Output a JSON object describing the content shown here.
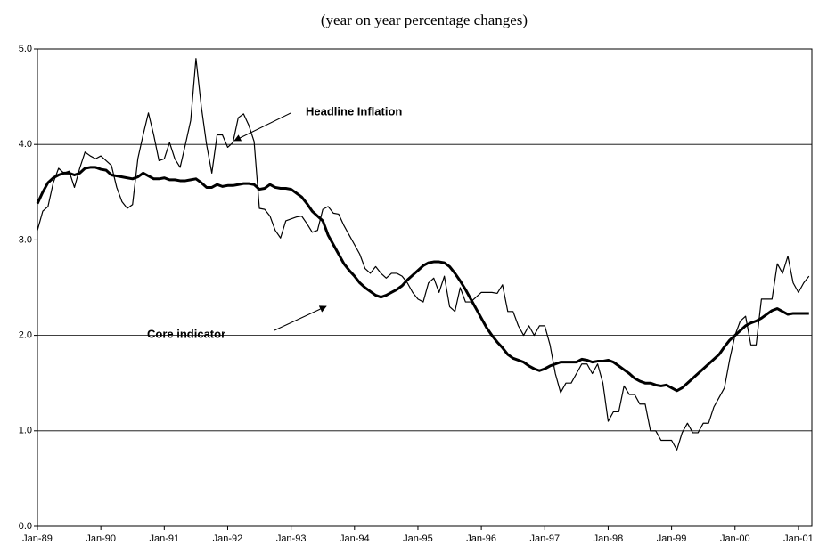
{
  "chart_data": {
    "type": "line",
    "title": "(year on year percentage changes)",
    "categories": [
      "Jan-89",
      null,
      null,
      null,
      null,
      null,
      null,
      null,
      null,
      null,
      null,
      null,
      "Jan-90",
      null,
      null,
      null,
      null,
      null,
      null,
      null,
      null,
      null,
      null,
      null,
      "Jan-91",
      null,
      null,
      null,
      null,
      null,
      null,
      null,
      null,
      null,
      null,
      null,
      "Jan-92",
      null,
      null,
      null,
      null,
      null,
      null,
      null,
      null,
      null,
      null,
      null,
      "Jan-93",
      null,
      null,
      null,
      null,
      null,
      null,
      null,
      null,
      null,
      null,
      null,
      "Jan-94",
      null,
      null,
      null,
      null,
      null,
      null,
      null,
      null,
      null,
      null,
      null,
      "Jan-95",
      null,
      null,
      null,
      null,
      null,
      null,
      null,
      null,
      null,
      null,
      null,
      "Jan-96",
      null,
      null,
      null,
      null,
      null,
      null,
      null,
      null,
      null,
      null,
      null,
      "Jan-97",
      null,
      null,
      null,
      null,
      null,
      null,
      null,
      null,
      null,
      null,
      null,
      "Jan-98",
      null,
      null,
      null,
      null,
      null,
      null,
      null,
      null,
      null,
      null,
      null,
      "Jan-99",
      null,
      null,
      null,
      null,
      null,
      null,
      null,
      null,
      null,
      null,
      null,
      "Jan-00",
      null,
      null,
      null,
      null,
      null,
      null,
      null,
      null,
      null,
      null,
      null,
      "Jan-01",
      null,
      null
    ],
    "series": [
      {
        "name": "Headline Inflation",
        "color": "#000000",
        "width": 1.2,
        "values": [
          3.1,
          3.3,
          3.35,
          3.6,
          3.75,
          3.7,
          3.72,
          3.55,
          3.75,
          3.92,
          3.88,
          3.85,
          3.88,
          3.83,
          3.78,
          3.55,
          3.4,
          3.33,
          3.37,
          3.85,
          4.1,
          4.33,
          4.1,
          3.83,
          3.85,
          4.02,
          3.85,
          3.76,
          4.0,
          4.25,
          4.9,
          4.4,
          4.0,
          3.7,
          4.1,
          4.1,
          3.97,
          4.02,
          4.28,
          4.32,
          4.2,
          4.03,
          3.33,
          3.32,
          3.25,
          3.1,
          3.02,
          3.2,
          3.22,
          3.24,
          3.25,
          3.17,
          3.08,
          3.1,
          3.32,
          3.35,
          3.28,
          3.27,
          3.15,
          3.05,
          2.95,
          2.85,
          2.7,
          2.65,
          2.72,
          2.65,
          2.6,
          2.65,
          2.65,
          2.62,
          2.55,
          2.45,
          2.38,
          2.35,
          2.55,
          2.6,
          2.45,
          2.62,
          2.3,
          2.25,
          2.5,
          2.35,
          2.35,
          2.4,
          2.45,
          2.45,
          2.45,
          2.44,
          2.53,
          2.25,
          2.25,
          2.1,
          2.0,
          2.1,
          2.0,
          2.1,
          2.1,
          1.9,
          1.6,
          1.4,
          1.5,
          1.5,
          1.6,
          1.7,
          1.7,
          1.6,
          1.7,
          1.5,
          1.1,
          1.2,
          1.2,
          1.47,
          1.38,
          1.38,
          1.28,
          1.28,
          1.0,
          1.0,
          0.9,
          0.9,
          0.9,
          0.8,
          0.98,
          1.08,
          0.98,
          0.98,
          1.08,
          1.08,
          1.25,
          1.35,
          1.45,
          1.75,
          2.0,
          2.15,
          2.2,
          1.9,
          1.9,
          2.38,
          2.38,
          2.38,
          2.75,
          2.65,
          2.83,
          2.55,
          2.45,
          2.55,
          2.62
        ]
      },
      {
        "name": "Core indicator",
        "color": "#000000",
        "width": 3,
        "values": [
          3.38,
          3.5,
          3.6,
          3.65,
          3.68,
          3.7,
          3.7,
          3.68,
          3.7,
          3.75,
          3.76,
          3.76,
          3.74,
          3.73,
          3.68,
          3.67,
          3.66,
          3.65,
          3.64,
          3.66,
          3.7,
          3.67,
          3.64,
          3.64,
          3.65,
          3.63,
          3.63,
          3.62,
          3.62,
          3.63,
          3.64,
          3.6,
          3.55,
          3.55,
          3.58,
          3.56,
          3.57,
          3.57,
          3.58,
          3.59,
          3.59,
          3.58,
          3.53,
          3.54,
          3.58,
          3.55,
          3.54,
          3.54,
          3.53,
          3.49,
          3.45,
          3.38,
          3.3,
          3.25,
          3.2,
          3.05,
          2.95,
          2.85,
          2.75,
          2.68,
          2.62,
          2.55,
          2.5,
          2.46,
          2.42,
          2.4,
          2.42,
          2.45,
          2.48,
          2.52,
          2.58,
          2.63,
          2.68,
          2.73,
          2.76,
          2.77,
          2.77,
          2.76,
          2.72,
          2.65,
          2.57,
          2.48,
          2.38,
          2.28,
          2.18,
          2.08,
          2.0,
          1.93,
          1.87,
          1.8,
          1.76,
          1.74,
          1.72,
          1.68,
          1.65,
          1.63,
          1.65,
          1.68,
          1.7,
          1.72,
          1.72,
          1.72,
          1.72,
          1.75,
          1.74,
          1.72,
          1.73,
          1.73,
          1.74,
          1.72,
          1.68,
          1.64,
          1.6,
          1.55,
          1.52,
          1.5,
          1.5,
          1.48,
          1.47,
          1.48,
          1.45,
          1.42,
          1.45,
          1.5,
          1.55,
          1.6,
          1.65,
          1.7,
          1.75,
          1.8,
          1.88,
          1.95,
          2.0,
          2.05,
          2.1,
          2.13,
          2.15,
          2.18,
          2.22,
          2.26,
          2.28,
          2.25,
          2.22,
          2.23,
          2.23,
          2.23,
          2.23
        ]
      }
    ],
    "ylim": [
      0,
      5
    ],
    "yticks": [
      {
        "value": 0,
        "label": "0.0"
      },
      {
        "value": 1,
        "label": "1.0"
      },
      {
        "value": 2,
        "label": "2.0"
      },
      {
        "value": 3,
        "label": "3.0"
      },
      {
        "value": 4,
        "label": "4.0"
      },
      {
        "value": 5,
        "label": "5.0"
      }
    ],
    "grid": true
  }
}
